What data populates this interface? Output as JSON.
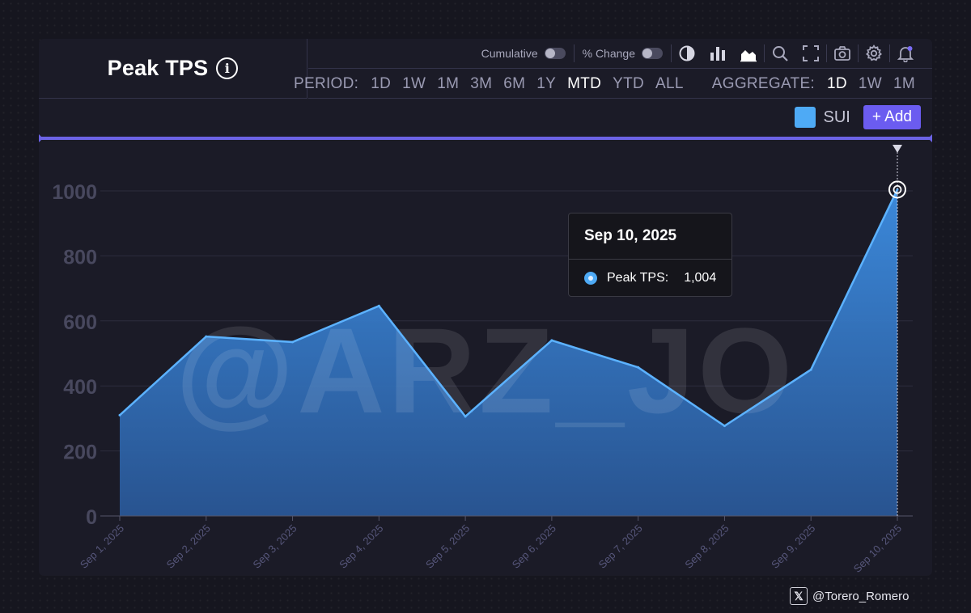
{
  "header": {
    "title": "Peak TPS",
    "info_icon": "info-icon"
  },
  "toolbar": {
    "cumulative_label": "Cumulative",
    "pct_change_label": "% Change",
    "icons": [
      "pie-chart-icon",
      "bar-chart-icon",
      "area-chart-icon",
      "search-icon",
      "fullscreen-icon",
      "camera-icon",
      "gear-icon",
      "bell-icon"
    ]
  },
  "period": {
    "label": "PERIOD:",
    "options": [
      "1D",
      "1W",
      "1M",
      "3M",
      "6M",
      "1Y",
      "MTD",
      "YTD",
      "ALL"
    ],
    "selected": "MTD"
  },
  "aggregate": {
    "label": "AGGREGATE:",
    "options": [
      "1D",
      "1W",
      "1M"
    ],
    "selected": "1D"
  },
  "legend": {
    "series_label": "SUI",
    "add_label": "+ Add",
    "swatch_color": "#4eaaf5"
  },
  "tooltip": {
    "date": "Sep 10, 2025",
    "series_label": "Peak TPS:",
    "value": "1,004"
  },
  "watermark": "@ARZ_JO",
  "credit": {
    "x_glyph": "𝕏",
    "handle": "@Torero_Romero"
  },
  "colors": {
    "accent": "#6b5cf0",
    "series": "#4eaaf5"
  },
  "chart_data": {
    "type": "area",
    "title": "Peak TPS",
    "x": [
      "Sep 1, 2025",
      "Sep 2, 2025",
      "Sep 3, 2025",
      "Sep 4, 2025",
      "Sep 5, 2025",
      "Sep 6, 2025",
      "Sep 7, 2025",
      "Sep 8, 2025",
      "Sep 9, 2025",
      "Sep 10, 2025"
    ],
    "series": [
      {
        "name": "SUI",
        "values": [
          310,
          552,
          535,
          646,
          306,
          540,
          457,
          277,
          450,
          1004
        ]
      }
    ],
    "yticks": [
      0,
      200,
      400,
      600,
      800,
      1000
    ],
    "ylim": [
      0,
      1100
    ],
    "grid": true,
    "legend": "top-right",
    "highlight_index": 9
  }
}
